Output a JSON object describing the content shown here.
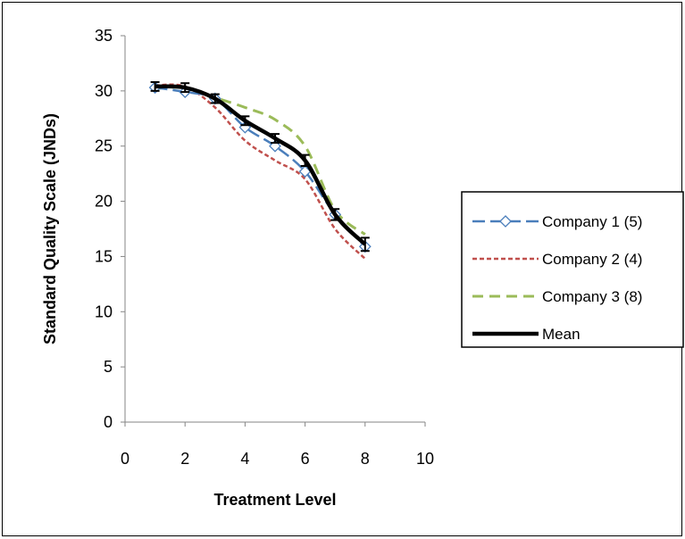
{
  "chart_data": {
    "type": "line",
    "xlabel": "Treatment Level",
    "ylabel": "Standard Quality Scale (JNDs)",
    "xlim": [
      0,
      10
    ],
    "ylim": [
      0,
      35
    ],
    "xticks": [
      0,
      2,
      4,
      6,
      8,
      10
    ],
    "yticks": [
      0,
      5,
      10,
      15,
      20,
      25,
      30,
      35
    ],
    "grid": false,
    "legend_position": "right",
    "series": [
      {
        "name": "Company 1 (5)",
        "color": "#4a7ebb",
        "style": "long-dash with open diamond markers",
        "x": [
          1,
          2,
          3,
          4,
          5,
          6,
          7,
          8
        ],
        "y": [
          30.3,
          29.9,
          29.3,
          26.7,
          25.0,
          22.7,
          18.8,
          15.9
        ]
      },
      {
        "name": "Company 2 (4)",
        "color": "#c0504d",
        "style": "short-dash",
        "x": [
          1,
          2,
          3,
          4,
          5,
          6,
          7,
          8
        ],
        "y": [
          30.5,
          30.4,
          28.5,
          25.5,
          23.7,
          22.0,
          17.5,
          14.8
        ]
      },
      {
        "name": "Company 3 (8)",
        "color": "#9bbb59",
        "style": "long-dash",
        "x": [
          1,
          2,
          3,
          4,
          5,
          6,
          7,
          8
        ],
        "y": [
          30.2,
          30.3,
          29.4,
          28.5,
          27.4,
          25.0,
          19.2,
          17.0
        ]
      },
      {
        "name": "Mean",
        "color": "#000000",
        "style": "solid thick with error bars",
        "x": [
          1,
          2,
          3,
          4,
          5,
          6,
          7,
          8
        ],
        "y": [
          30.4,
          30.3,
          29.3,
          27.3,
          25.7,
          23.7,
          18.8,
          16.1
        ],
        "error": [
          0.4,
          0.4,
          0.4,
          0.4,
          0.4,
          0.5,
          0.5,
          0.6
        ]
      }
    ]
  }
}
